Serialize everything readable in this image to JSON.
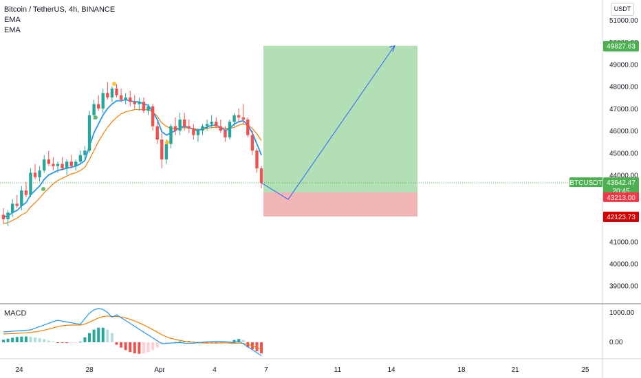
{
  "header": {
    "symbol_line": "Bitcoin / TetherUS, 4h, BINANCE",
    "indicators": [
      "EMA",
      "EMA"
    ],
    "currency": "USDT"
  },
  "macd_label": "MACD",
  "colors": {
    "up": "#26a69a",
    "down": "#ef5350",
    "ema_fast": "#2196f3",
    "ema_slow": "#f57c00",
    "profit_zone": "#b3dfb5",
    "loss_zone": "#f3b6b7",
    "price_tag": "#4caf50",
    "target_tag": "#4caf50",
    "entry_tag": "#f23645",
    "stop_tag": "#d50000"
  },
  "price_scale": [
    "51000.00",
    "50000.00",
    "49000.00",
    "48000.00",
    "47000.00",
    "46000.00",
    "45000.00",
    "44000.00",
    "43000.00",
    "42000.00",
    "41000.00",
    "40000.00",
    "39000.00"
  ],
  "macd_scale": [
    "1000.00",
    "0.00"
  ],
  "time_axis": [
    "24",
    "28",
    "Apr",
    "4",
    "7",
    "11",
    "14",
    "18",
    "21",
    "25"
  ],
  "tags": {
    "target": "49827.63",
    "current_symbol": "BTCUSDT",
    "current_price": "43642.47",
    "countdown": "20:45",
    "entry": "43213.00",
    "stop": "42123.73"
  },
  "chart_data": {
    "type": "candlestick",
    "title": "Bitcoin / TetherUS, 4h, BINANCE",
    "interval": "4h",
    "exchange": "BINANCE",
    "y_range": [
      38500,
      51400
    ],
    "x_range_days": [
      "Mar 21",
      "Apr 27"
    ],
    "candles_ohlc": [
      [
        42200,
        42500,
        41800,
        42000
      ],
      [
        42000,
        42400,
        41700,
        42300
      ],
      [
        42300,
        42900,
        42100,
        42700
      ],
      [
        42700,
        43100,
        42500,
        42600
      ],
      [
        42600,
        43500,
        42400,
        43300
      ],
      [
        43300,
        43700,
        43000,
        43100
      ],
      [
        43100,
        44300,
        43000,
        44100
      ],
      [
        44100,
        44500,
        43800,
        43900
      ],
      [
        43900,
        44400,
        43700,
        44200
      ],
      [
        44200,
        44900,
        44100,
        44700
      ],
      [
        44700,
        45100,
        44400,
        44500
      ],
      [
        44500,
        44800,
        44200,
        44400
      ],
      [
        44400,
        44600,
        44100,
        44500
      ],
      [
        44500,
        44800,
        44200,
        44300
      ],
      [
        44300,
        44700,
        44000,
        44600
      ],
      [
        44600,
        44900,
        44300,
        44400
      ],
      [
        44400,
        44700,
        44200,
        44600
      ],
      [
        44600,
        45100,
        44500,
        44900
      ],
      [
        44900,
        45300,
        44700,
        45100
      ],
      [
        45100,
        46900,
        45000,
        46700
      ],
      [
        46700,
        47400,
        46500,
        47200
      ],
      [
        47200,
        47600,
        46900,
        47000
      ],
      [
        47000,
        47900,
        46800,
        47700
      ],
      [
        47700,
        48200,
        47400,
        47500
      ],
      [
        47500,
        48000,
        47300,
        47900
      ],
      [
        47900,
        48100,
        47500,
        47600
      ],
      [
        47600,
        47900,
        47300,
        47400
      ],
      [
        47400,
        47700,
        47200,
        47500
      ],
      [
        47500,
        47800,
        47100,
        47300
      ],
      [
        47300,
        47600,
        47000,
        47200
      ],
      [
        47200,
        47500,
        46900,
        47300
      ],
      [
        47300,
        47500,
        46800,
        46900
      ],
      [
        46900,
        47200,
        46700,
        47100
      ],
      [
        47100,
        47200,
        46000,
        46200
      ],
      [
        46200,
        46400,
        45400,
        45600
      ],
      [
        45600,
        45900,
        44300,
        44700
      ],
      [
        44700,
        45600,
        44500,
        45400
      ],
      [
        45400,
        46300,
        45200,
        46200
      ],
      [
        46200,
        46600,
        45800,
        46000
      ],
      [
        46000,
        46800,
        45800,
        46500
      ],
      [
        46500,
        46800,
        46000,
        46200
      ],
      [
        46200,
        46500,
        45900,
        46100
      ],
      [
        46100,
        46300,
        45600,
        45800
      ],
      [
        45800,
        46100,
        45500,
        46000
      ],
      [
        46000,
        46300,
        45800,
        46200
      ],
      [
        46200,
        46500,
        46000,
        46300
      ],
      [
        46300,
        46700,
        46100,
        46400
      ],
      [
        46400,
        46600,
        46100,
        46200
      ],
      [
        46200,
        46500,
        45900,
        46000
      ],
      [
        46000,
        46200,
        45500,
        45700
      ],
      [
        45700,
        46500,
        45600,
        46400
      ],
      [
        46400,
        46800,
        46200,
        46700
      ],
      [
        46700,
        47000,
        46400,
        46600
      ],
      [
        46600,
        47200,
        46300,
        46500
      ],
      [
        46500,
        46600,
        45700,
        45800
      ],
      [
        45800,
        46000,
        44900,
        45100
      ],
      [
        45100,
        45200,
        44100,
        44300
      ],
      [
        44300,
        44400,
        43400,
        43640
      ]
    ],
    "series": [
      {
        "name": "EMA",
        "values": [
          42100,
          42150,
          42300,
          42400,
          42600,
          42750,
          43100,
          43300,
          43500,
          43800,
          44000,
          44100,
          44200,
          44250,
          44300,
          44350,
          44400,
          44500,
          44650,
          45300,
          45900,
          46300,
          46700,
          47000,
          47200,
          47350,
          47350,
          47400,
          47350,
          47300,
          47300,
          47200,
          47150,
          46850,
          46500,
          45950,
          45800,
          45900,
          46000,
          46150,
          46200,
          46150,
          46050,
          46000,
          46100,
          46150,
          46250,
          46250,
          46150,
          46000,
          46100,
          46300,
          46400,
          46450,
          46250,
          45900,
          45400,
          44900
        ]
      },
      {
        "name": "EMA",
        "values": [
          41800,
          41850,
          41950,
          42050,
          42200,
          42300,
          42550,
          42750,
          42950,
          43200,
          43400,
          43600,
          43750,
          43850,
          43950,
          44050,
          44100,
          44200,
          44350,
          44700,
          45100,
          45500,
          45850,
          46150,
          46400,
          46600,
          46750,
          46850,
          46900,
          46950,
          46950,
          46950,
          46950,
          46850,
          46650,
          46350,
          46200,
          46100,
          46100,
          46100,
          46150,
          46100,
          46100,
          46050,
          46050,
          46100,
          46150,
          46150,
          46150,
          46100,
          46100,
          46150,
          46250,
          46300,
          46250,
          46100,
          45850,
          45550
        ]
      }
    ],
    "position": {
      "entry": 43213.0,
      "target": 49827.63,
      "stop": 42123.73
    },
    "forecast_path": [
      [
        43642,
        "now"
      ],
      [
        42900,
        "Apr 8"
      ],
      [
        49800,
        "Apr 14"
      ]
    ],
    "macd": {
      "y_range": [
        -700,
        1400
      ]
    }
  }
}
